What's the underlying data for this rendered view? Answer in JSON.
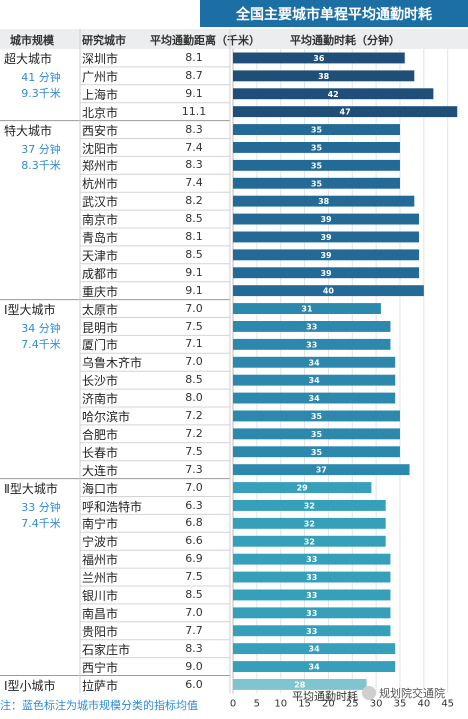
{
  "title": "全国主要城市单程平均通勤时耗",
  "headers": {
    "tier": "城市规模",
    "city": "研究城市",
    "distance": "平均通勤距离（千米）",
    "time": "平均通勤时耗（分钟）"
  },
  "groups": [
    {
      "name": "超大城市",
      "avg_time": "41 分钟",
      "avg_distance": "9.3千米",
      "start": 0,
      "count": 4
    },
    {
      "name": "特大城市",
      "avg_time": "37 分钟",
      "avg_distance": "8.3千米",
      "start": 4,
      "count": 10
    },
    {
      "name": "Ⅰ型大城市",
      "avg_time": "34 分钟",
      "avg_distance": "7.4千米",
      "start": 14,
      "count": 10
    },
    {
      "name": "Ⅱ型大城市",
      "avg_time": "33 分钟",
      "avg_distance": "7.4千米",
      "start": 24,
      "count": 11
    },
    {
      "name": "Ⅰ型小城市",
      "avg_time": "",
      "avg_distance": "",
      "start": 35,
      "count": 1
    }
  ],
  "chart_data": {
    "type": "bar",
    "orientation": "horizontal",
    "title": "全国主要城市单程平均通勤时耗",
    "xlabel": "平均通勤时耗",
    "xlim": [
      0,
      48
    ],
    "xticks": [
      0,
      5,
      10,
      15,
      20,
      25,
      30,
      35,
      40,
      45
    ],
    "grid": true,
    "categories": [
      "深圳市",
      "广州市",
      "上海市",
      "北京市",
      "西安市",
      "沈阳市",
      "郑州市",
      "杭州市",
      "武汉市",
      "南京市",
      "青岛市",
      "天津市",
      "成都市",
      "重庆市",
      "太原市",
      "昆明市",
      "厦门市",
      "乌鲁木齐市",
      "长沙市",
      "济南市",
      "哈尔滨市",
      "合肥市",
      "长春市",
      "大连市",
      "海口市",
      "呼和浩特市",
      "南宁市",
      "宁波市",
      "福州市",
      "兰州市",
      "银川市",
      "南昌市",
      "贵阳市",
      "石家庄市",
      "西宁市",
      "拉萨市"
    ],
    "values": [
      36,
      38,
      42,
      47,
      35,
      35,
      35,
      35,
      38,
      39,
      39,
      39,
      39,
      40,
      31,
      33,
      33,
      34,
      34,
      34,
      35,
      35,
      35,
      37,
      29,
      32,
      32,
      32,
      33,
      33,
      33,
      33,
      33,
      34,
      34,
      28
    ],
    "distances": [
      "8.1",
      "8.7",
      "9.1",
      "11.1",
      "8.3",
      "7.4",
      "8.3",
      "7.4",
      "8.2",
      "8.5",
      "8.1",
      "8.5",
      "9.1",
      "9.1",
      "7.0",
      "7.5",
      "7.1",
      "7.0",
      "8.5",
      "8.0",
      "7.2",
      "7.2",
      "7.5",
      "7.3",
      "7.0",
      "6.3",
      "6.8",
      "6.6",
      "6.9",
      "7.5",
      "8.5",
      "7.0",
      "7.7",
      "8.3",
      "9.0",
      "6.0"
    ],
    "colors": {
      "超大城市": "#1f4e79",
      "特大城市": "#236a96",
      "Ⅰ型大城市": "#2d88ad",
      "Ⅱ型大城市": "#36a0ba",
      "Ⅰ型小城市": "#7fc5cf"
    }
  },
  "footnote": "注：蓝色标注为城市规模分类的指标均值",
  "watermark": "规划院交通院"
}
